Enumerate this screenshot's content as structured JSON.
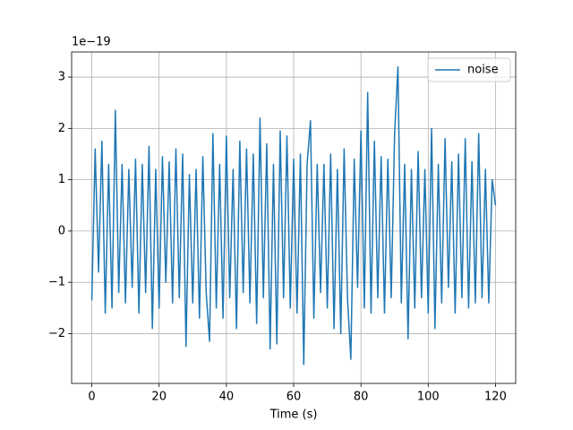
{
  "chart_data": {
    "type": "line",
    "xlabel": "Time (s)",
    "y_offset_label": "1e−19",
    "x": [
      0,
      1,
      2,
      3,
      4,
      5,
      6,
      7,
      8,
      9,
      10,
      11,
      12,
      13,
      14,
      15,
      16,
      17,
      18,
      19,
      20,
      21,
      22,
      23,
      24,
      25,
      26,
      27,
      28,
      29,
      30,
      31,
      32,
      33,
      34,
      35,
      36,
      37,
      38,
      39,
      40,
      41,
      42,
      43,
      44,
      45,
      46,
      47,
      48,
      49,
      50,
      51,
      52,
      53,
      54,
      55,
      56,
      57,
      58,
      59,
      60,
      61,
      62,
      63,
      64,
      65,
      66,
      67,
      68,
      69,
      70,
      71,
      72,
      73,
      74,
      75,
      76,
      77,
      78,
      79,
      80,
      81,
      82,
      83,
      84,
      85,
      86,
      87,
      88,
      89,
      90,
      91,
      92,
      93,
      94,
      95,
      96,
      97,
      98,
      99,
      100,
      101,
      102,
      103,
      104,
      105,
      106,
      107,
      108,
      109,
      110,
      111,
      112,
      113,
      114,
      115,
      116,
      117,
      118,
      119,
      120
    ],
    "series": [
      {
        "name": "noise",
        "color": "#1f77b4",
        "values": [
          -1.35,
          1.6,
          -0.8,
          1.75,
          -1.6,
          1.3,
          -1.5,
          2.35,
          -1.2,
          1.3,
          -1.4,
          1.2,
          -1.1,
          1.4,
          -1.6,
          1.3,
          -1.2,
          1.65,
          -1.9,
          1.2,
          -1.5,
          1.45,
          -1.0,
          1.35,
          -1.4,
          1.6,
          -1.3,
          1.5,
          -2.25,
          1.1,
          -1.4,
          1.2,
          -1.7,
          1.45,
          -1.2,
          -2.15,
          1.9,
          -1.5,
          1.3,
          -1.7,
          1.85,
          -1.3,
          1.2,
          -1.9,
          1.75,
          -1.2,
          1.6,
          -1.4,
          1.5,
          -1.8,
          2.2,
          -1.3,
          1.7,
          -2.3,
          1.3,
          -2.2,
          1.95,
          -1.3,
          1.85,
          -1.5,
          1.4,
          -1.6,
          1.5,
          -2.6,
          1.3,
          2.15,
          -1.7,
          1.3,
          -1.2,
          1.3,
          -1.5,
          1.5,
          -1.9,
          1.2,
          -2.0,
          1.6,
          -1.3,
          -2.5,
          1.4,
          -1.1,
          1.95,
          -1.5,
          2.7,
          -1.6,
          1.75,
          -1.3,
          1.45,
          -1.6,
          1.4,
          -1.3,
          1.9,
          3.2,
          -1.4,
          1.3,
          -2.1,
          1.2,
          -1.5,
          1.55,
          -1.3,
          1.2,
          -1.6,
          2.0,
          -1.9,
          1.3,
          -1.4,
          1.8,
          -1.1,
          1.35,
          -1.6,
          1.5,
          -1.3,
          1.8,
          -1.5,
          1.35,
          -1.4,
          1.9,
          -1.3,
          1.2,
          -1.4,
          1.0,
          0.5
        ]
      }
    ],
    "xlim": [
      -6,
      126
    ],
    "ylim": [
      -2.97,
      3.49
    ],
    "xticks": [
      0,
      20,
      40,
      60,
      80,
      100,
      120
    ],
    "yticks": [
      {
        "value": -2,
        "label": "−2"
      },
      {
        "value": -1,
        "label": "−1"
      },
      0,
      1,
      2,
      3
    ],
    "grid": true,
    "legend": "upper right"
  }
}
